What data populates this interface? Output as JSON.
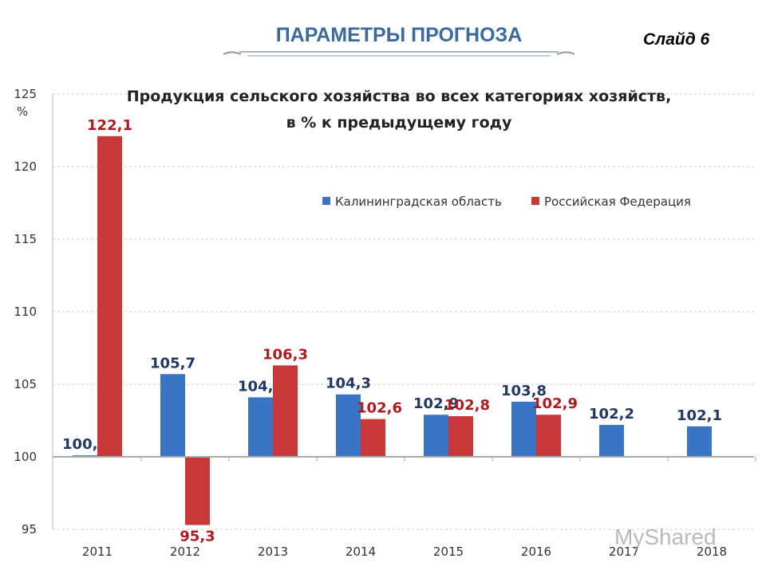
{
  "header": {
    "title": "ПАРАМЕТРЫ ПРОГНОЗА",
    "slide": "Слайд 6"
  },
  "watermark": "MyShared",
  "chart_data": {
    "type": "bar",
    "title": "Продукция сельского хозяйства во всех  категориях хозяйств,",
    "subtitle": "в % к предыдущему году",
    "ylabel": "%",
    "xlabel": "",
    "ylim": [
      95,
      125
    ],
    "yticks": [
      95,
      100,
      105,
      110,
      115,
      120,
      125
    ],
    "baseline": 100,
    "grid": true,
    "legend_position": "top-right",
    "categories": [
      "2011",
      "2012",
      "2013",
      "2014",
      "2015",
      "2016",
      "2017",
      "2018"
    ],
    "series": [
      {
        "name": "Калининградская область",
        "color": "#3a74c4",
        "label_color": "#1f3864",
        "values": [
          100.1,
          105.7,
          104.1,
          104.3,
          102.9,
          103.8,
          102.2,
          102.1
        ],
        "labels": [
          "100,1",
          "105,7",
          "104,1",
          "104,3",
          "102,9",
          "103,8",
          "102,2",
          "102,1"
        ]
      },
      {
        "name": "Российская Федерация",
        "color": "#c8373a",
        "label_color": "#b0191e",
        "values": [
          122.1,
          95.3,
          106.3,
          102.6,
          102.8,
          102.9,
          null,
          null
        ],
        "labels": [
          "122,1",
          "95,3",
          "106,3",
          "102,6",
          "102,8",
          "102,9",
          null,
          null
        ]
      }
    ]
  }
}
